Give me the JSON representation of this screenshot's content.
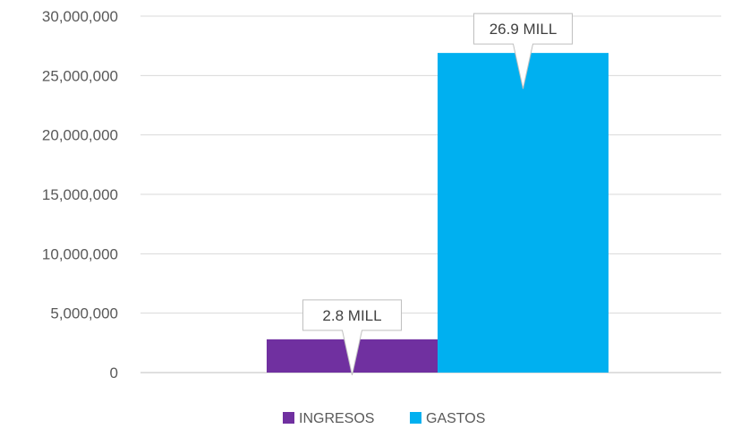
{
  "chart_data": {
    "type": "bar",
    "categories": [
      ""
    ],
    "series": [
      {
        "name": "INGRESOS",
        "values": [
          2800000
        ],
        "color": "#7030a0",
        "data_label": "2.8 MILL"
      },
      {
        "name": "GASTOS",
        "values": [
          26900000
        ],
        "color": "#00b0f0",
        "data_label": "26.9 MILL"
      }
    ],
    "yticks": [
      "0",
      "5,000,000",
      "10,000,000",
      "15,000,000",
      "20,000,000",
      "25,000,000",
      "30,000,000"
    ],
    "ylim": [
      0,
      30000000
    ],
    "grid": true,
    "legend": "bottom"
  }
}
